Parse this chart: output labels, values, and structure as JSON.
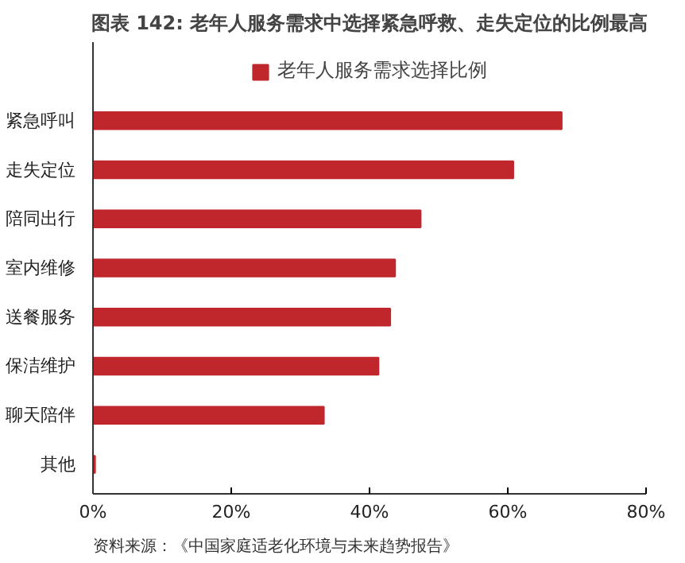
{
  "chart_data": {
    "type": "bar",
    "orientation": "horizontal",
    "title": "图表 142: 老年人服务需求中选择紧急呼救、走失定位的比例最高",
    "categories": [
      "紧急呼叫",
      "走失定位",
      "陪同出行",
      "室内维修",
      "送餐服务",
      "保洁维护",
      "聊天陪伴",
      "其他"
    ],
    "series": [
      {
        "name": "老年人服务需求选择比例",
        "color": "#c0272d",
        "values": [
          67.8,
          60.8,
          47.4,
          43.7,
          43.0,
          41.3,
          33.4,
          0.3
        ]
      }
    ],
    "xlim": [
      0,
      80
    ],
    "xticks": [
      {
        "value": 0,
        "label": "0%"
      },
      {
        "value": 20,
        "label": "20%"
      },
      {
        "value": 40,
        "label": "40%"
      },
      {
        "value": 60,
        "label": "60%"
      },
      {
        "value": 80,
        "label": "80%"
      }
    ],
    "grid": false,
    "legend": "top",
    "annotations": [
      "资料来源：《中国家庭适老化环境与未来趋势报告》"
    ]
  }
}
